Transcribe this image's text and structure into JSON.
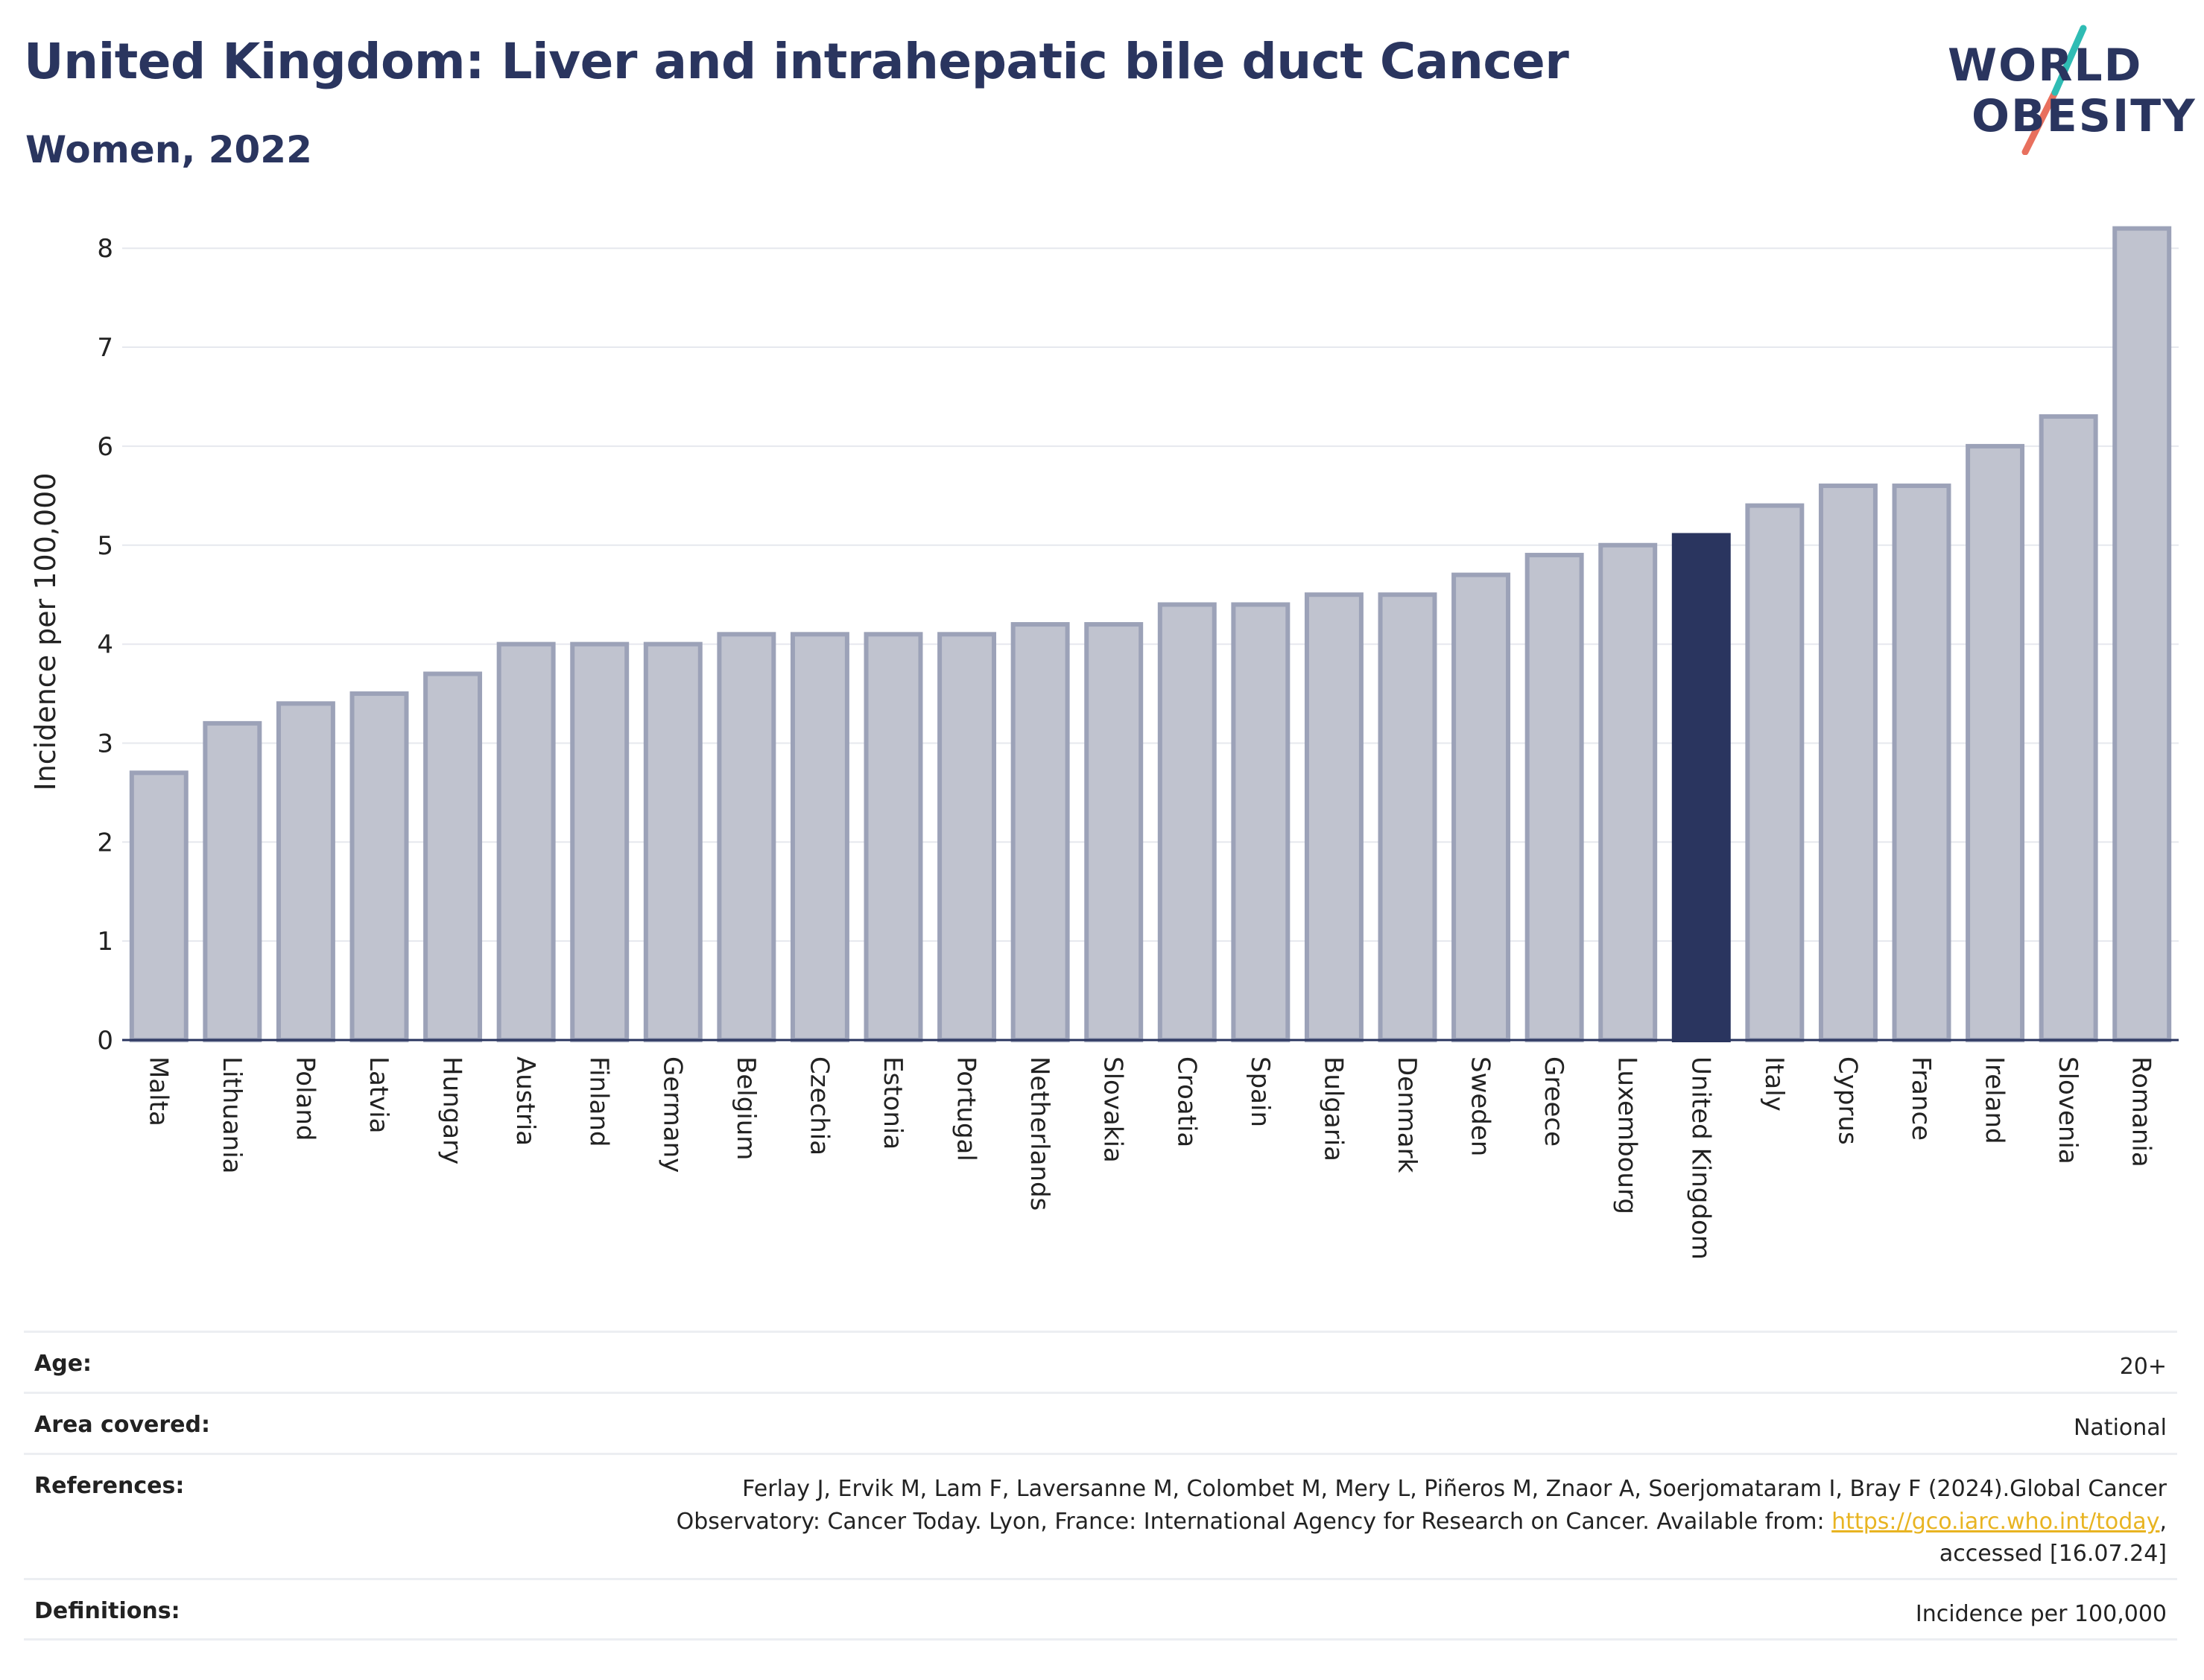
{
  "header": {
    "title": "United Kingdom: Liver and intrahepatic bile duct Cancer",
    "subtitle": "Women, 2022"
  },
  "logo": {
    "line1": "WORLD",
    "line2": "OBESITY"
  },
  "chart_data": {
    "type": "bar",
    "title": "United Kingdom: Liver and intrahepatic bile duct Cancer",
    "subtitle": "Women, 2022",
    "xlabel": "",
    "ylabel": "Incidence per 100,000",
    "ylim": [
      0,
      8.25
    ],
    "yticks": [
      0,
      1,
      2,
      3,
      4,
      5,
      6,
      7,
      8
    ],
    "grid": true,
    "highlight": "United Kingdom",
    "colors": {
      "bar": "#c0c3cf",
      "bar_edge": "#9ca2b8",
      "highlight": "#2a355f"
    },
    "categories": [
      "Malta",
      "Lithuania",
      "Poland",
      "Latvia",
      "Hungary",
      "Austria",
      "Finland",
      "Germany",
      "Belgium",
      "Czechia",
      "Estonia",
      "Portugal",
      "Netherlands",
      "Slovakia",
      "Croatia",
      "Spain",
      "Bulgaria",
      "Denmark",
      "Sweden",
      "Greece",
      "Luxembourg",
      "United Kingdom",
      "Italy",
      "Cyprus",
      "France",
      "Ireland",
      "Slovenia",
      "Romania"
    ],
    "values": [
      2.7,
      3.2,
      3.4,
      3.5,
      3.7,
      4.0,
      4.0,
      4.0,
      4.1,
      4.1,
      4.1,
      4.1,
      4.2,
      4.2,
      4.4,
      4.4,
      4.5,
      4.5,
      4.7,
      4.9,
      5.0,
      5.1,
      5.4,
      5.6,
      5.6,
      6.0,
      6.3,
      8.2
    ]
  },
  "meta": {
    "age": {
      "label": "Age:",
      "value": "20+"
    },
    "area": {
      "label": "Area covered:",
      "value": "National"
    },
    "references": {
      "label": "References:",
      "line1": "Ferlay J, Ervik M, Lam F, Laversanne M, Colombet M, Mery L, Piñeros M, Znaor A, Soerjomataram I, Bray F (2024).Global Cancer",
      "line2": "Observatory: Cancer Today. Lyon, France: International Agency for Research on Cancer. Available from: ",
      "link": "https://gco.iarc.who.int/today",
      "line2_end": ",",
      "line3": "accessed [16.07.24]"
    },
    "definitions": {
      "label": "Definitions:",
      "value": "Incidence per 100,000"
    }
  }
}
